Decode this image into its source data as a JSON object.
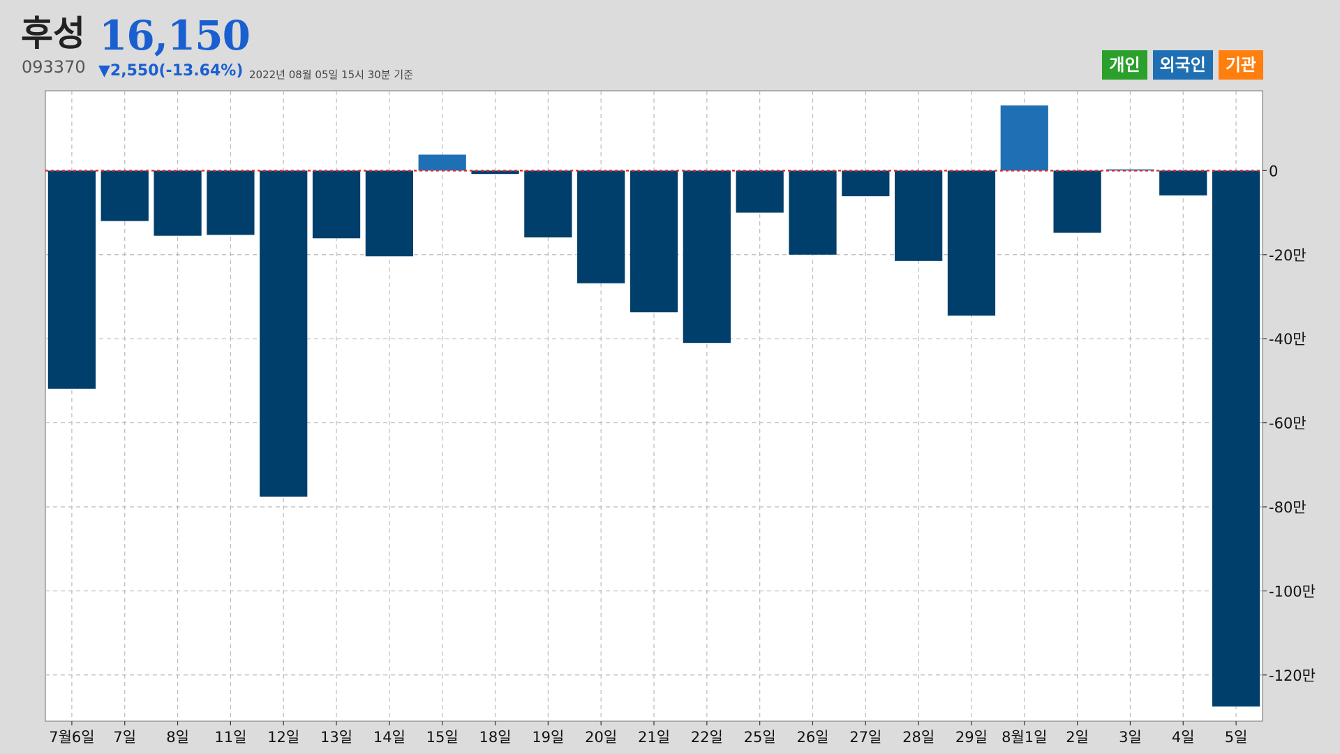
{
  "header": {
    "name": "후성",
    "price": "16,150",
    "code": "093370",
    "change": "▼2,550(-13.64%)",
    "timestamp": "2022년 08월 05일 15시 30분 기준"
  },
  "legend": [
    {
      "label": "개인",
      "color": "#2ca02c"
    },
    {
      "label": "외국인",
      "color": "#1f6fb4"
    },
    {
      "label": "기관",
      "color": "#ff7f0e"
    }
  ],
  "colors": {
    "negative_bar": "#003f6b",
    "positive_bar": "#1f6fb4",
    "zero_line": "#e03030",
    "grid": "#bbbbbb",
    "plot_background": "#ffffff"
  },
  "chart_data": {
    "type": "bar",
    "series": [
      {
        "name": "외국인"
      }
    ],
    "categories": [
      "7월6일",
      "7일",
      "8일",
      "11일",
      "12일",
      "13일",
      "14일",
      "15일",
      "18일",
      "19일",
      "20일",
      "21일",
      "22일",
      "25일",
      "26일",
      "27일",
      "28일",
      "29일",
      "8월1일",
      "2일",
      "3일",
      "4일",
      "5일"
    ],
    "values": [
      -519000,
      -120000,
      -155000,
      -153000,
      -776000,
      -161000,
      -204000,
      38000,
      -8000,
      -159000,
      -268000,
      -337000,
      -410000,
      -100000,
      -200000,
      -61000,
      -215000,
      -345000,
      155000,
      -148000,
      3000,
      -59000,
      -1275000
    ],
    "ylim": [
      -1310000,
      190000
    ],
    "yticks": [
      0,
      -200000,
      -400000,
      -600000,
      -800000,
      -1000000,
      -1200000
    ],
    "ytick_labels": [
      "0",
      "-20만",
      "-40만",
      "-60만",
      "-80만",
      "-100만",
      "-120만"
    ],
    "grid": true,
    "zero_line": true,
    "legend_position": "top-right"
  }
}
